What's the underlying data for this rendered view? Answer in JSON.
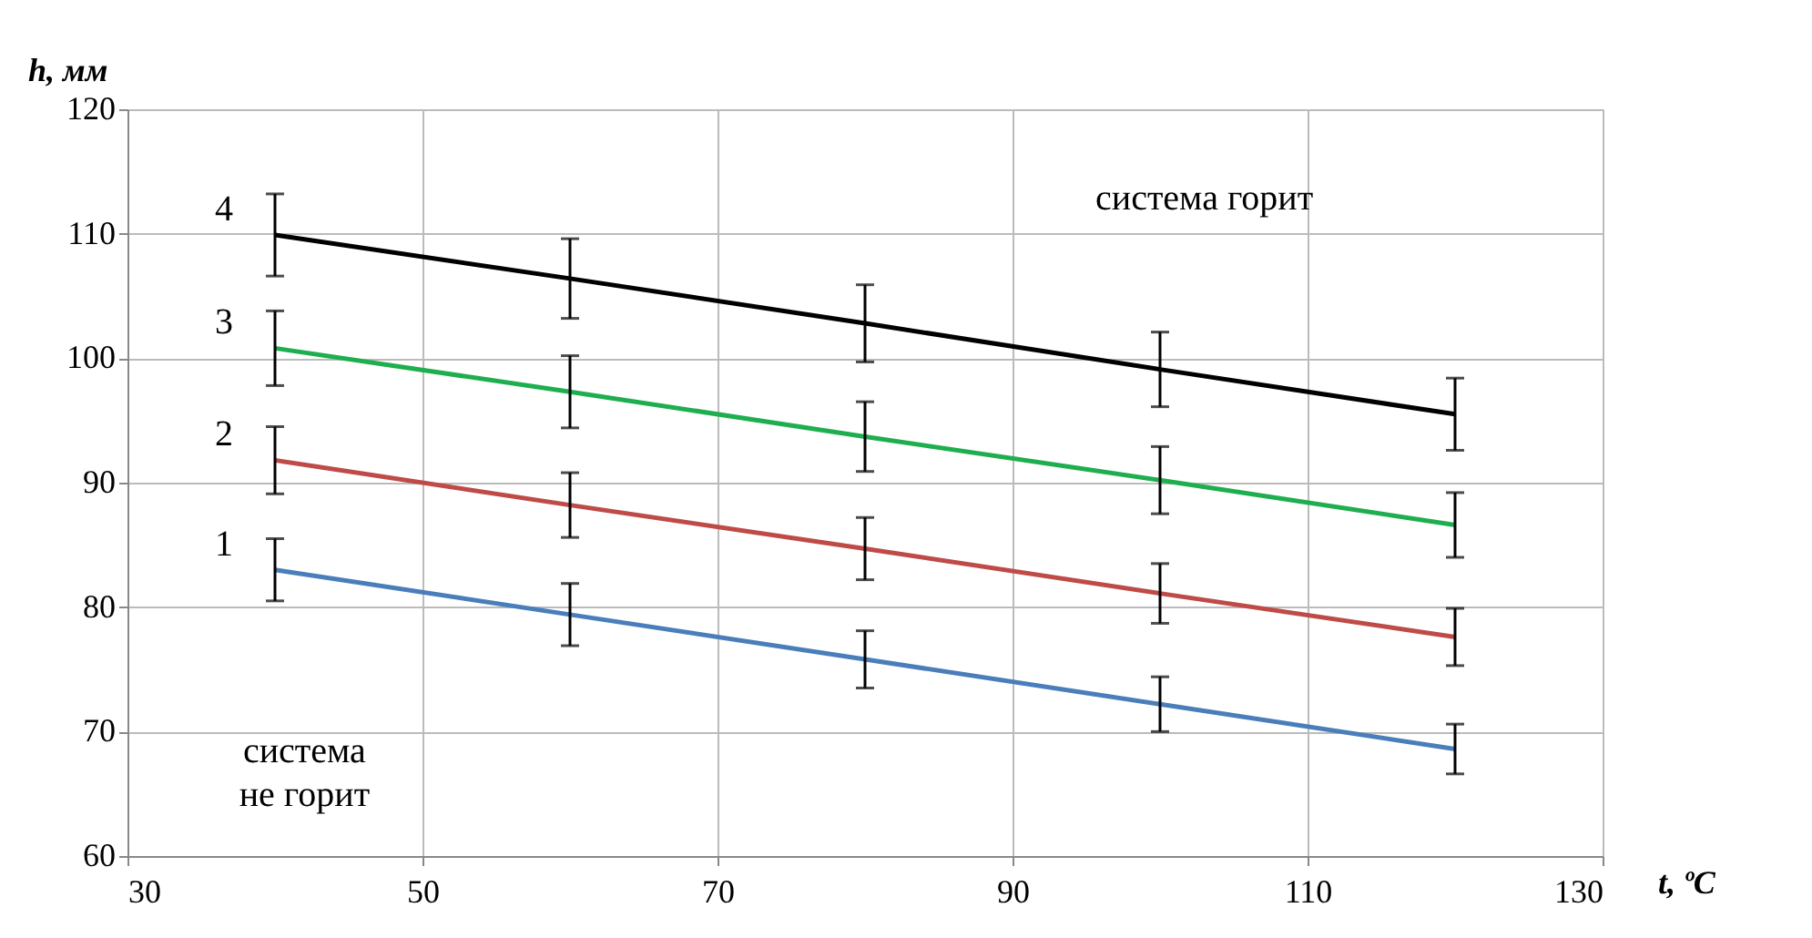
{
  "chart_data": {
    "type": "line",
    "xlabel": "t, ºC",
    "ylabel": "h, мм",
    "x": [
      40,
      60,
      80,
      100,
      120
    ],
    "series": [
      {
        "name": "1",
        "color": "#4a7ebb",
        "values": [
          83,
          79.4,
          75.8,
          72.2,
          68.6
        ],
        "errors": [
          2.5,
          2.5,
          2.3,
          2.2,
          2
        ]
      },
      {
        "name": "2",
        "color": "#be4b48",
        "values": [
          91.8,
          88.2,
          84.7,
          81.1,
          77.6
        ],
        "errors": [
          2.7,
          2.6,
          2.5,
          2.4,
          2.3
        ]
      },
      {
        "name": "3",
        "color": "#1fae4f",
        "values": [
          100.8,
          97.3,
          93.7,
          90.2,
          86.6
        ],
        "errors": [
          3,
          2.9,
          2.8,
          2.7,
          2.6
        ]
      },
      {
        "name": "4",
        "color": "#000000",
        "values": [
          109.9,
          106.4,
          102.8,
          99.1,
          95.5
        ],
        "errors": [
          3.3,
          3.2,
          3.1,
          3,
          2.9
        ]
      }
    ],
    "xlim": [
      30,
      130
    ],
    "xticks": [
      30,
      50,
      70,
      90,
      110,
      130
    ],
    "ylim": [
      60,
      120
    ],
    "yticks": [
      60,
      70,
      80,
      90,
      100,
      110,
      120
    ],
    "grid": true,
    "marker": "none",
    "line_style": "solid",
    "annotations": [
      "система горит",
      "система\nне горит"
    ]
  }
}
